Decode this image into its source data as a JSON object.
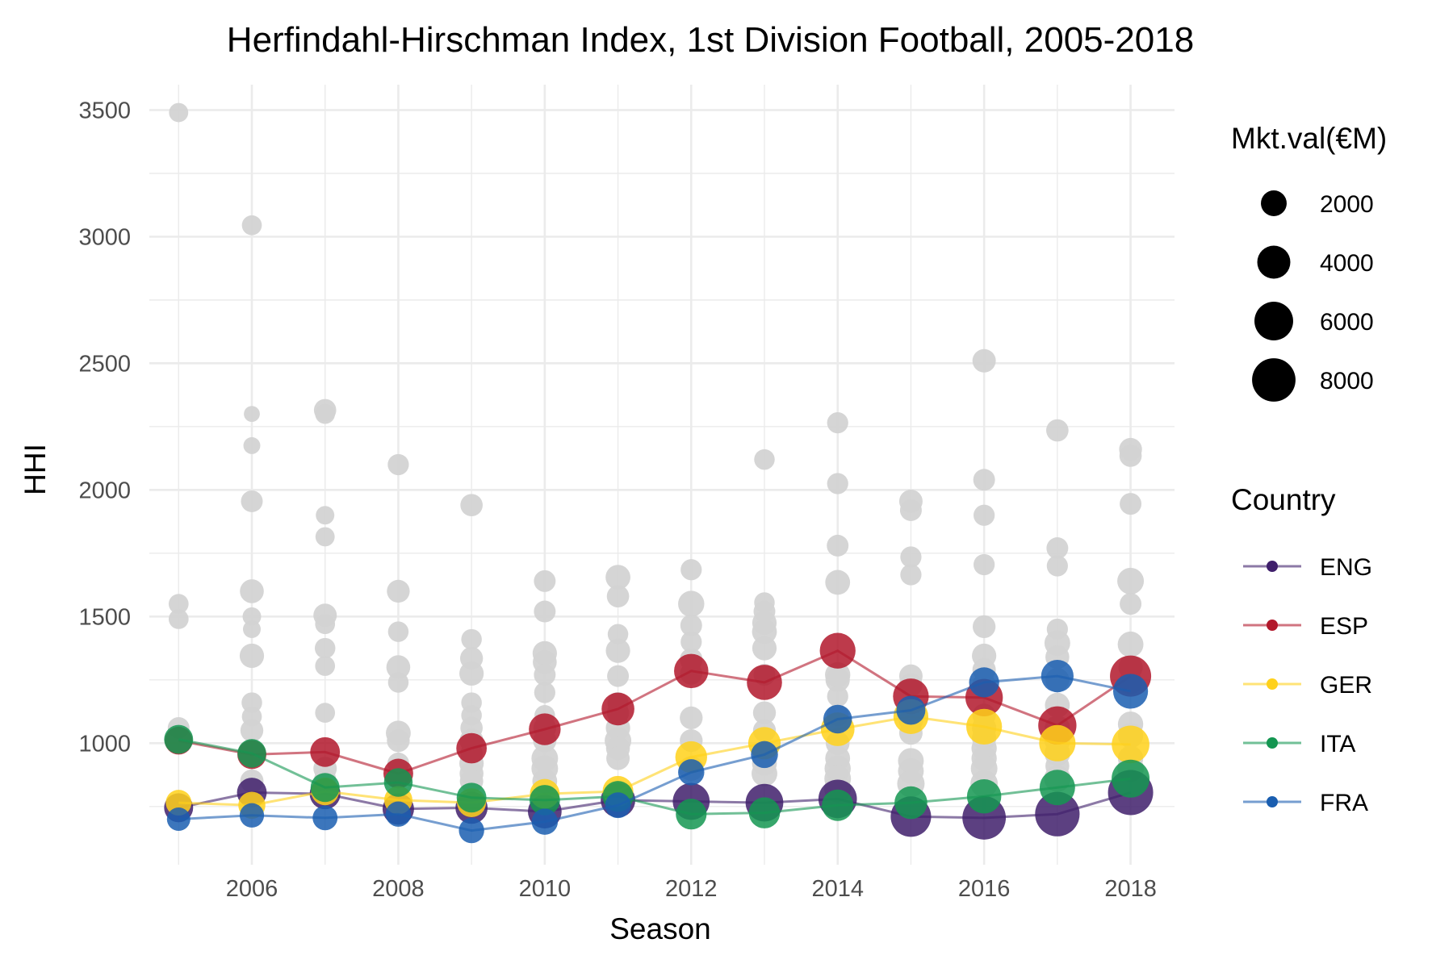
{
  "chart_data": {
    "type": "scatter",
    "title": "Herfindahl-Hirschman Index, 1st Division Football, 2005-2018",
    "xlabel": "Season",
    "ylabel": "HHI",
    "xlim": [
      2004.6,
      2018.6
    ],
    "ylim": [
      520,
      3600
    ],
    "x_ticks": [
      2006,
      2008,
      2010,
      2012,
      2014,
      2016,
      2018
    ],
    "y_ticks": [
      1000,
      1500,
      2000,
      2500,
      3000,
      3500
    ],
    "grid": true,
    "legend_position": "right",
    "size_legend": {
      "title": "Mkt.val(€M)",
      "entries": [
        {
          "label": "2000",
          "value": 2000
        },
        {
          "label": "4000",
          "value": 4000
        },
        {
          "label": "6000",
          "value": 6000
        },
        {
          "label": "8000",
          "value": 8000
        }
      ]
    },
    "color_legend": {
      "title": "Country"
    },
    "background_points": [
      [
        2005,
        3490,
        800
      ],
      [
        2005,
        1550,
        900
      ],
      [
        2005,
        1490,
        900
      ],
      [
        2005,
        1060,
        1200
      ],
      [
        2006,
        3045,
        900
      ],
      [
        2006,
        2300,
        400
      ],
      [
        2006,
        2175,
        500
      ],
      [
        2006,
        1955,
        1200
      ],
      [
        2006,
        1600,
        1600
      ],
      [
        2006,
        1500,
        700
      ],
      [
        2006,
        1450,
        600
      ],
      [
        2006,
        1345,
        1700
      ],
      [
        2006,
        1160,
        1000
      ],
      [
        2006,
        1105,
        900
      ],
      [
        2006,
        1050,
        1400
      ],
      [
        2006,
        850,
        1500
      ],
      [
        2007,
        2315,
        1300
      ],
      [
        2007,
        2300,
        900
      ],
      [
        2007,
        1900,
        700
      ],
      [
        2007,
        1815,
        800
      ],
      [
        2007,
        1505,
        1500
      ],
      [
        2007,
        1470,
        900
      ],
      [
        2007,
        1375,
        1000
      ],
      [
        2007,
        1305,
        900
      ],
      [
        2007,
        1120,
        900
      ],
      [
        2007,
        900,
        1500
      ],
      [
        2007,
        860,
        1200
      ],
      [
        2008,
        2100,
        1100
      ],
      [
        2008,
        1600,
        1400
      ],
      [
        2008,
        1440,
        1000
      ],
      [
        2008,
        1300,
        1600
      ],
      [
        2008,
        1240,
        1000
      ],
      [
        2008,
        1040,
        1800
      ],
      [
        2008,
        1010,
        1400
      ],
      [
        2008,
        920,
        1200
      ],
      [
        2008,
        870,
        1500
      ],
      [
        2009,
        1940,
        1300
      ],
      [
        2009,
        1410,
        1000
      ],
      [
        2009,
        1335,
        1400
      ],
      [
        2009,
        1275,
        1700
      ],
      [
        2009,
        1160,
        1000
      ],
      [
        2009,
        1110,
        1000
      ],
      [
        2009,
        1060,
        1300
      ],
      [
        2009,
        1010,
        1600
      ],
      [
        2009,
        960,
        1300
      ],
      [
        2009,
        920,
        1700
      ],
      [
        2009,
        880,
        1600
      ],
      [
        2009,
        850,
        1500
      ],
      [
        2010,
        1640,
        1200
      ],
      [
        2010,
        1520,
        1200
      ],
      [
        2010,
        1355,
        1700
      ],
      [
        2010,
        1320,
        1600
      ],
      [
        2010,
        1270,
        1200
      ],
      [
        2010,
        1200,
        1100
      ],
      [
        2010,
        1110,
        1000
      ],
      [
        2010,
        1060,
        1400
      ],
      [
        2010,
        1010,
        1500
      ],
      [
        2010,
        940,
        2200
      ],
      [
        2010,
        900,
        2200
      ],
      [
        2010,
        850,
        1800
      ],
      [
        2011,
        1655,
        1800
      ],
      [
        2011,
        1580,
        1300
      ],
      [
        2011,
        1430,
        1000
      ],
      [
        2011,
        1365,
        1700
      ],
      [
        2011,
        1265,
        1200
      ],
      [
        2011,
        1160,
        1100
      ],
      [
        2011,
        1120,
        1300
      ],
      [
        2011,
        1060,
        1700
      ],
      [
        2011,
        1010,
        2200
      ],
      [
        2011,
        980,
        1600
      ],
      [
        2011,
        940,
        1500
      ],
      [
        2012,
        1685,
        1100
      ],
      [
        2012,
        1550,
        2100
      ],
      [
        2012,
        1465,
        1200
      ],
      [
        2012,
        1400,
        1100
      ],
      [
        2012,
        1330,
        1400
      ],
      [
        2012,
        1275,
        1300
      ],
      [
        2012,
        1100,
        1400
      ],
      [
        2012,
        1010,
        1400
      ],
      [
        2012,
        900,
        1800
      ],
      [
        2013,
        2120,
        1000
      ],
      [
        2013,
        1555,
        1000
      ],
      [
        2013,
        1520,
        1200
      ],
      [
        2013,
        1475,
        1700
      ],
      [
        2013,
        1440,
        1800
      ],
      [
        2013,
        1375,
        1700
      ],
      [
        2013,
        1270,
        1200
      ],
      [
        2013,
        1120,
        1400
      ],
      [
        2013,
        1050,
        1400
      ],
      [
        2013,
        960,
        1600
      ],
      [
        2013,
        920,
        1800
      ],
      [
        2013,
        880,
        2000
      ],
      [
        2014,
        2265,
        1100
      ],
      [
        2014,
        2025,
        1100
      ],
      [
        2014,
        1780,
        1200
      ],
      [
        2014,
        1635,
        1800
      ],
      [
        2014,
        1270,
        1900
      ],
      [
        2014,
        1250,
        1700
      ],
      [
        2014,
        1185,
        1100
      ],
      [
        2014,
        1110,
        1300
      ],
      [
        2014,
        1000,
        1600
      ],
      [
        2014,
        940,
        1800
      ],
      [
        2014,
        900,
        2100
      ],
      [
        2014,
        860,
        2200
      ],
      [
        2014,
        820,
        2300
      ],
      [
        2015,
        1955,
        1500
      ],
      [
        2015,
        1920,
        1200
      ],
      [
        2015,
        1735,
        1100
      ],
      [
        2015,
        1665,
        1100
      ],
      [
        2015,
        1265,
        1500
      ],
      [
        2015,
        1230,
        1500
      ],
      [
        2015,
        1090,
        1700
      ],
      [
        2015,
        1040,
        1500
      ],
      [
        2015,
        930,
        2000
      ],
      [
        2015,
        890,
        2000
      ],
      [
        2015,
        840,
        2400
      ],
      [
        2016,
        2510,
        1500
      ],
      [
        2016,
        2040,
        1200
      ],
      [
        2016,
        1900,
        1100
      ],
      [
        2016,
        1705,
        1100
      ],
      [
        2016,
        1460,
        1400
      ],
      [
        2016,
        1345,
        1700
      ],
      [
        2016,
        1290,
        1500
      ],
      [
        2016,
        1230,
        1600
      ],
      [
        2016,
        1110,
        1500
      ],
      [
        2016,
        1060,
        1700
      ],
      [
        2016,
        1020,
        1700
      ],
      [
        2016,
        980,
        1900
      ],
      [
        2016,
        940,
        1900
      ],
      [
        2016,
        900,
        2200
      ],
      [
        2016,
        840,
        2400
      ],
      [
        2017,
        2235,
        1300
      ],
      [
        2017,
        1770,
        1200
      ],
      [
        2017,
        1700,
        1100
      ],
      [
        2017,
        1450,
        1100
      ],
      [
        2017,
        1395,
        2000
      ],
      [
        2017,
        1340,
        1600
      ],
      [
        2017,
        1250,
        1600
      ],
      [
        2017,
        1150,
        1800
      ],
      [
        2017,
        1060,
        1900
      ],
      [
        2017,
        1010,
        2000
      ],
      [
        2017,
        960,
        2000
      ],
      [
        2017,
        910,
        1600
      ],
      [
        2017,
        860,
        2200
      ],
      [
        2018,
        2160,
        1400
      ],
      [
        2018,
        2135,
        1300
      ],
      [
        2018,
        1945,
        1200
      ],
      [
        2018,
        1640,
        2200
      ],
      [
        2018,
        1550,
        1200
      ],
      [
        2018,
        1390,
        2000
      ],
      [
        2018,
        1300,
        1700
      ],
      [
        2018,
        1240,
        1600
      ],
      [
        2018,
        1075,
        1900
      ],
      [
        2018,
        1030,
        1900
      ],
      [
        2018,
        940,
        1900
      ],
      [
        2018,
        900,
        2200
      ]
    ],
    "series": [
      {
        "name": "ENG",
        "color": "#3f1f6b",
        "points": [
          [
            2005,
            745,
            2800
          ],
          [
            2006,
            805,
            3000
          ],
          [
            2007,
            800,
            3300
          ],
          [
            2008,
            740,
            3500
          ],
          [
            2009,
            745,
            3700
          ],
          [
            2010,
            730,
            4200
          ],
          [
            2011,
            775,
            4500
          ],
          [
            2012,
            770,
            5300
          ],
          [
            2013,
            765,
            5600
          ],
          [
            2014,
            780,
            5900
          ],
          [
            2015,
            710,
            6700
          ],
          [
            2016,
            705,
            8000
          ],
          [
            2017,
            720,
            8500
          ],
          [
            2018,
            805,
            8800
          ]
        ]
      },
      {
        "name": "ESP",
        "color": "#b2182b",
        "points": [
          [
            2005,
            1010,
            2500
          ],
          [
            2006,
            955,
            2800
          ],
          [
            2007,
            965,
            3000
          ],
          [
            2008,
            880,
            3000
          ],
          [
            2009,
            980,
            3200
          ],
          [
            2010,
            1055,
            3600
          ],
          [
            2011,
            1135,
            3900
          ],
          [
            2012,
            1285,
            4400
          ],
          [
            2013,
            1240,
            4700
          ],
          [
            2014,
            1365,
            4900
          ],
          [
            2015,
            1185,
            4900
          ],
          [
            2016,
            1180,
            5500
          ],
          [
            2017,
            1070,
            5800
          ],
          [
            2018,
            1265,
            7000
          ]
        ]
      },
      {
        "name": "GER",
        "color": "#ffd11a",
        "points": [
          [
            2005,
            765,
            2000
          ],
          [
            2006,
            755,
            2300
          ],
          [
            2007,
            810,
            2500
          ],
          [
            2008,
            775,
            2600
          ],
          [
            2009,
            765,
            2800
          ],
          [
            2010,
            800,
            3000
          ],
          [
            2011,
            810,
            3300
          ],
          [
            2012,
            945,
            3600
          ],
          [
            2013,
            1000,
            3800
          ],
          [
            2014,
            1055,
            4200
          ],
          [
            2015,
            1105,
            4600
          ],
          [
            2016,
            1065,
            4900
          ],
          [
            2017,
            1000,
            5100
          ],
          [
            2018,
            995,
            5600
          ]
        ]
      },
      {
        "name": "ITA",
        "color": "#149651",
        "points": [
          [
            2005,
            1015,
            2800
          ],
          [
            2006,
            960,
            2700
          ],
          [
            2007,
            825,
            2800
          ],
          [
            2008,
            845,
            2700
          ],
          [
            2009,
            785,
            3000
          ],
          [
            2010,
            775,
            3200
          ],
          [
            2011,
            790,
            3300
          ],
          [
            2012,
            720,
            3300
          ],
          [
            2013,
            725,
            3400
          ],
          [
            2014,
            755,
            3500
          ],
          [
            2015,
            765,
            3900
          ],
          [
            2016,
            790,
            4400
          ],
          [
            2017,
            825,
            4800
          ],
          [
            2018,
            860,
            5700
          ]
        ]
      },
      {
        "name": "FRA",
        "color": "#1a5eb0",
        "points": [
          [
            2005,
            700,
            1500
          ],
          [
            2006,
            715,
            1700
          ],
          [
            2007,
            705,
            1800
          ],
          [
            2008,
            720,
            1900
          ],
          [
            2009,
            655,
            1900
          ],
          [
            2010,
            690,
            2100
          ],
          [
            2011,
            755,
            2000
          ],
          [
            2012,
            885,
            2100
          ],
          [
            2013,
            955,
            2300
          ],
          [
            2014,
            1095,
            2700
          ],
          [
            2015,
            1130,
            2800
          ],
          [
            2016,
            1240,
            3100
          ],
          [
            2017,
            1265,
            3800
          ],
          [
            2018,
            1205,
            4600
          ]
        ]
      }
    ]
  }
}
